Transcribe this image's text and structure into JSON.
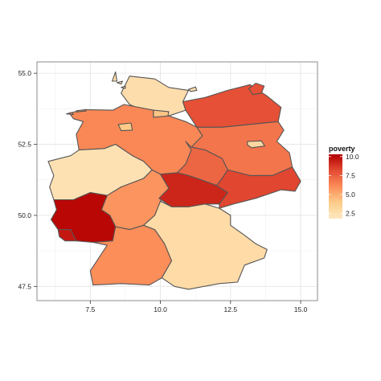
{
  "chart_data": {
    "type": "choropleth",
    "title": "",
    "xlabel": "",
    "ylabel": "",
    "xlim": [
      5.6,
      15.6
    ],
    "ylim": [
      47.0,
      55.4
    ],
    "grid": true,
    "x_ticks": [
      {
        "value": 7.5,
        "label": "7.5"
      },
      {
        "value": 10.0,
        "label": "10.0"
      },
      {
        "value": 12.5,
        "label": "12.5"
      },
      {
        "value": 15.0,
        "label": "15.0"
      }
    ],
    "y_ticks": [
      {
        "value": 47.5,
        "label": "47.5"
      },
      {
        "value": 50.0,
        "label": "50.0"
      },
      {
        "value": 52.5,
        "label": "52.5"
      },
      {
        "value": 55.0,
        "label": "55.0"
      }
    ],
    "legend": {
      "title": "poverty",
      "placement": "right",
      "min": 1.8,
      "max": 10.3,
      "ticks": [
        {
          "value": 10.0,
          "label": "10.0"
        },
        {
          "value": 7.5,
          "label": "7.5"
        },
        {
          "value": 5.0,
          "label": "5.0"
        },
        {
          "value": 2.5,
          "label": "2.5"
        }
      ],
      "colors": [
        "#fee8c0",
        "#fdcc8a",
        "#fc8d59",
        "#e34a33",
        "#b30000"
      ]
    },
    "regions": [
      {
        "id": "schleswig-holstein",
        "poverty": 2.6,
        "points": [
          [
            8.6,
            54.3
          ],
          [
            8.9,
            54.9
          ],
          [
            9.8,
            54.8
          ],
          [
            10.3,
            54.5
          ],
          [
            11.0,
            54.4
          ],
          [
            10.8,
            54.0
          ],
          [
            10.9,
            53.7
          ],
          [
            10.3,
            53.5
          ],
          [
            9.6,
            53.6
          ],
          [
            8.9,
            53.9
          ]
        ]
      },
      {
        "id": "hamburg",
        "poverty": 4.2,
        "points": [
          [
            9.75,
            53.7
          ],
          [
            10.3,
            53.65
          ],
          [
            10.25,
            53.42
          ],
          [
            9.75,
            53.45
          ]
        ]
      },
      {
        "id": "mecklenburg-vorpommern",
        "poverty": 8.0,
        "points": [
          [
            10.9,
            53.7
          ],
          [
            10.8,
            54.0
          ],
          [
            11.6,
            54.15
          ],
          [
            12.4,
            54.4
          ],
          [
            13.2,
            54.6
          ],
          [
            13.8,
            54.2
          ],
          [
            14.3,
            53.8
          ],
          [
            14.2,
            53.3
          ],
          [
            13.2,
            53.2
          ],
          [
            12.2,
            53.1
          ],
          [
            11.3,
            53.1
          ]
        ]
      },
      {
        "id": "niedersachsen",
        "poverty": 6.2,
        "points": [
          [
            6.75,
            53.6
          ],
          [
            7.3,
            53.72
          ],
          [
            8.3,
            53.7
          ],
          [
            8.7,
            53.9
          ],
          [
            9.75,
            53.7
          ],
          [
            9.75,
            53.45
          ],
          [
            10.3,
            53.5
          ],
          [
            10.9,
            53.3
          ],
          [
            11.3,
            53.1
          ],
          [
            11.5,
            52.8
          ],
          [
            11.1,
            52.3
          ],
          [
            10.9,
            51.8
          ],
          [
            10.6,
            51.5
          ],
          [
            10.0,
            51.45
          ],
          [
            9.7,
            51.6
          ],
          [
            9.4,
            51.9
          ],
          [
            9.0,
            52.1
          ],
          [
            8.4,
            52.5
          ],
          [
            8.0,
            52.35
          ],
          [
            7.1,
            52.3
          ],
          [
            7.0,
            52.85
          ],
          [
            7.25,
            53.3
          ],
          [
            6.9,
            53.4
          ]
        ]
      },
      {
        "id": "bremen",
        "poverty": 4.0,
        "points": [
          [
            8.5,
            53.2
          ],
          [
            8.95,
            53.25
          ],
          [
            9.0,
            53.0
          ],
          [
            8.6,
            52.98
          ]
        ]
      },
      {
        "id": "brandenburg",
        "poverty": 6.8,
        "points": [
          [
            11.3,
            53.1
          ],
          [
            12.2,
            53.1
          ],
          [
            13.2,
            53.2
          ],
          [
            14.2,
            53.3
          ],
          [
            14.4,
            53.0
          ],
          [
            14.15,
            52.6
          ],
          [
            14.6,
            52.2
          ],
          [
            14.7,
            51.7
          ],
          [
            14.0,
            51.4
          ],
          [
            13.2,
            51.4
          ],
          [
            12.4,
            51.6
          ],
          [
            12.2,
            52.0
          ],
          [
            11.6,
            52.3
          ],
          [
            11.1,
            52.4
          ],
          [
            11.5,
            52.8
          ]
        ]
      },
      {
        "id": "berlin",
        "poverty": 3.0,
        "points": [
          [
            13.1,
            52.6
          ],
          [
            13.6,
            52.62
          ],
          [
            13.72,
            52.44
          ],
          [
            13.25,
            52.38
          ],
          [
            13.1,
            52.48
          ]
        ]
      },
      {
        "id": "sachsen-anhalt",
        "poverty": 7.3,
        "points": [
          [
            10.9,
            52.6
          ],
          [
            11.1,
            52.4
          ],
          [
            11.6,
            52.3
          ],
          [
            12.2,
            52.0
          ],
          [
            12.4,
            51.6
          ],
          [
            12.2,
            51.3
          ],
          [
            12.0,
            51.05
          ],
          [
            11.6,
            51.2
          ],
          [
            11.0,
            51.4
          ],
          [
            10.6,
            51.5
          ],
          [
            10.9,
            51.8
          ],
          [
            11.1,
            52.3
          ]
        ]
      },
      {
        "id": "nordrhein-westfalen",
        "poverty": 2.3,
        "points": [
          [
            6.0,
            51.9
          ],
          [
            6.8,
            52.1
          ],
          [
            7.1,
            52.3
          ],
          [
            8.0,
            52.35
          ],
          [
            8.4,
            52.5
          ],
          [
            9.0,
            52.1
          ],
          [
            9.4,
            51.9
          ],
          [
            9.7,
            51.6
          ],
          [
            9.4,
            51.3
          ],
          [
            8.6,
            51.0
          ],
          [
            8.1,
            50.7
          ],
          [
            7.5,
            50.8
          ],
          [
            6.9,
            50.55
          ],
          [
            6.2,
            50.55
          ],
          [
            6.05,
            51.0
          ],
          [
            6.2,
            51.4
          ]
        ]
      },
      {
        "id": "hessen",
        "poverty": 5.8,
        "points": [
          [
            8.1,
            50.7
          ],
          [
            8.6,
            51.0
          ],
          [
            9.4,
            51.3
          ],
          [
            9.7,
            51.6
          ],
          [
            10.0,
            51.45
          ],
          [
            10.3,
            50.95
          ],
          [
            10.0,
            50.5
          ],
          [
            9.8,
            50.0
          ],
          [
            9.4,
            49.65
          ],
          [
            8.9,
            49.5
          ],
          [
            8.4,
            49.6
          ],
          [
            8.2,
            50.0
          ],
          [
            7.9,
            50.2
          ]
        ]
      },
      {
        "id": "thueringen",
        "poverty": 9.2,
        "points": [
          [
            10.0,
            51.45
          ],
          [
            10.6,
            51.5
          ],
          [
            11.0,
            51.4
          ],
          [
            11.6,
            51.2
          ],
          [
            12.0,
            51.05
          ],
          [
            12.4,
            50.8
          ],
          [
            12.1,
            50.4
          ],
          [
            11.6,
            50.4
          ],
          [
            11.0,
            50.3
          ],
          [
            10.4,
            50.3
          ],
          [
            9.95,
            50.6
          ],
          [
            10.3,
            50.95
          ]
        ]
      },
      {
        "id": "sachsen",
        "poverty": 8.3,
        "points": [
          [
            12.0,
            51.05
          ],
          [
            12.2,
            51.3
          ],
          [
            12.4,
            51.6
          ],
          [
            13.2,
            51.4
          ],
          [
            14.0,
            51.4
          ],
          [
            14.7,
            51.7
          ],
          [
            15.0,
            51.2
          ],
          [
            14.8,
            50.85
          ],
          [
            14.3,
            50.9
          ],
          [
            13.4,
            50.6
          ],
          [
            12.6,
            50.4
          ],
          [
            12.1,
            50.25
          ],
          [
            12.1,
            50.4
          ],
          [
            12.4,
            50.8
          ]
        ]
      },
      {
        "id": "rheinland-pfalz",
        "poverty": 10.1,
        "points": [
          [
            6.2,
            50.55
          ],
          [
            6.9,
            50.55
          ],
          [
            7.5,
            50.8
          ],
          [
            8.1,
            50.7
          ],
          [
            7.9,
            50.2
          ],
          [
            8.2,
            50.0
          ],
          [
            8.4,
            49.6
          ],
          [
            8.3,
            49.1
          ],
          [
            7.6,
            49.05
          ],
          [
            7.0,
            49.1
          ],
          [
            6.8,
            49.5
          ],
          [
            6.35,
            49.5
          ],
          [
            6.1,
            49.85
          ],
          [
            6.3,
            50.2
          ]
        ]
      },
      {
        "id": "saarland",
        "poverty": 9.6,
        "points": [
          [
            6.35,
            49.5
          ],
          [
            6.8,
            49.5
          ],
          [
            7.0,
            49.1
          ],
          [
            6.6,
            49.1
          ],
          [
            6.4,
            49.25
          ]
        ]
      },
      {
        "id": "baden-wuerttemberg",
        "poverty": 6.0,
        "points": [
          [
            7.6,
            49.05
          ],
          [
            8.3,
            49.1
          ],
          [
            8.4,
            49.6
          ],
          [
            8.9,
            49.5
          ],
          [
            9.4,
            49.65
          ],
          [
            9.8,
            49.5
          ],
          [
            10.15,
            49.0
          ],
          [
            10.4,
            48.4
          ],
          [
            10.05,
            47.8
          ],
          [
            9.6,
            47.55
          ],
          [
            8.6,
            47.6
          ],
          [
            7.6,
            47.55
          ],
          [
            7.5,
            48.05
          ],
          [
            7.8,
            48.5
          ],
          [
            8.1,
            48.95
          ]
        ]
      },
      {
        "id": "bayern",
        "poverty": 2.8,
        "points": [
          [
            9.8,
            50.0
          ],
          [
            10.0,
            50.5
          ],
          [
            10.4,
            50.3
          ],
          [
            11.0,
            50.3
          ],
          [
            11.6,
            50.4
          ],
          [
            12.1,
            50.25
          ],
          [
            12.5,
            50.0
          ],
          [
            12.5,
            49.65
          ],
          [
            13.0,
            49.3
          ],
          [
            13.4,
            49.0
          ],
          [
            13.8,
            48.8
          ],
          [
            13.7,
            48.5
          ],
          [
            13.0,
            48.25
          ],
          [
            12.75,
            47.65
          ],
          [
            12.1,
            47.6
          ],
          [
            11.0,
            47.4
          ],
          [
            10.5,
            47.5
          ],
          [
            10.05,
            47.8
          ],
          [
            10.4,
            48.4
          ],
          [
            10.15,
            49.0
          ],
          [
            9.8,
            49.5
          ],
          [
            9.4,
            49.65
          ]
        ]
      },
      {
        "id": "island-ruegen",
        "poverty": 8.0,
        "points": [
          [
            13.15,
            54.45
          ],
          [
            13.4,
            54.65
          ],
          [
            13.7,
            54.55
          ],
          [
            13.6,
            54.3
          ],
          [
            13.3,
            54.25
          ]
        ]
      },
      {
        "id": "island-fehmarn",
        "poverty": 2.6,
        "points": [
          [
            11.0,
            54.43
          ],
          [
            11.25,
            54.52
          ],
          [
            11.3,
            54.4
          ],
          [
            11.08,
            54.36
          ]
        ]
      },
      {
        "id": "island-sylt",
        "poverty": 2.6,
        "points": [
          [
            8.28,
            54.72
          ],
          [
            8.4,
            55.05
          ],
          [
            8.45,
            54.72
          ]
        ]
      },
      {
        "id": "island-foehr",
        "poverty": 2.6,
        "points": [
          [
            8.45,
            54.67
          ],
          [
            8.65,
            54.72
          ],
          [
            8.6,
            54.62
          ]
        ]
      },
      {
        "id": "island-borkum",
        "poverty": 6.2,
        "points": [
          [
            6.65,
            53.57
          ],
          [
            6.85,
            53.62
          ],
          [
            6.9,
            53.55
          ]
        ]
      },
      {
        "id": "island-juist",
        "poverty": 6.2,
        "points": [
          [
            7.0,
            53.68
          ],
          [
            7.35,
            53.72
          ],
          [
            7.35,
            53.67
          ],
          [
            7.0,
            53.64
          ]
        ]
      },
      {
        "id": "island-nordfriesland",
        "poverty": 2.6,
        "points": [
          [
            8.6,
            54.5
          ],
          [
            8.75,
            54.55
          ],
          [
            8.75,
            54.47
          ]
        ]
      }
    ]
  }
}
